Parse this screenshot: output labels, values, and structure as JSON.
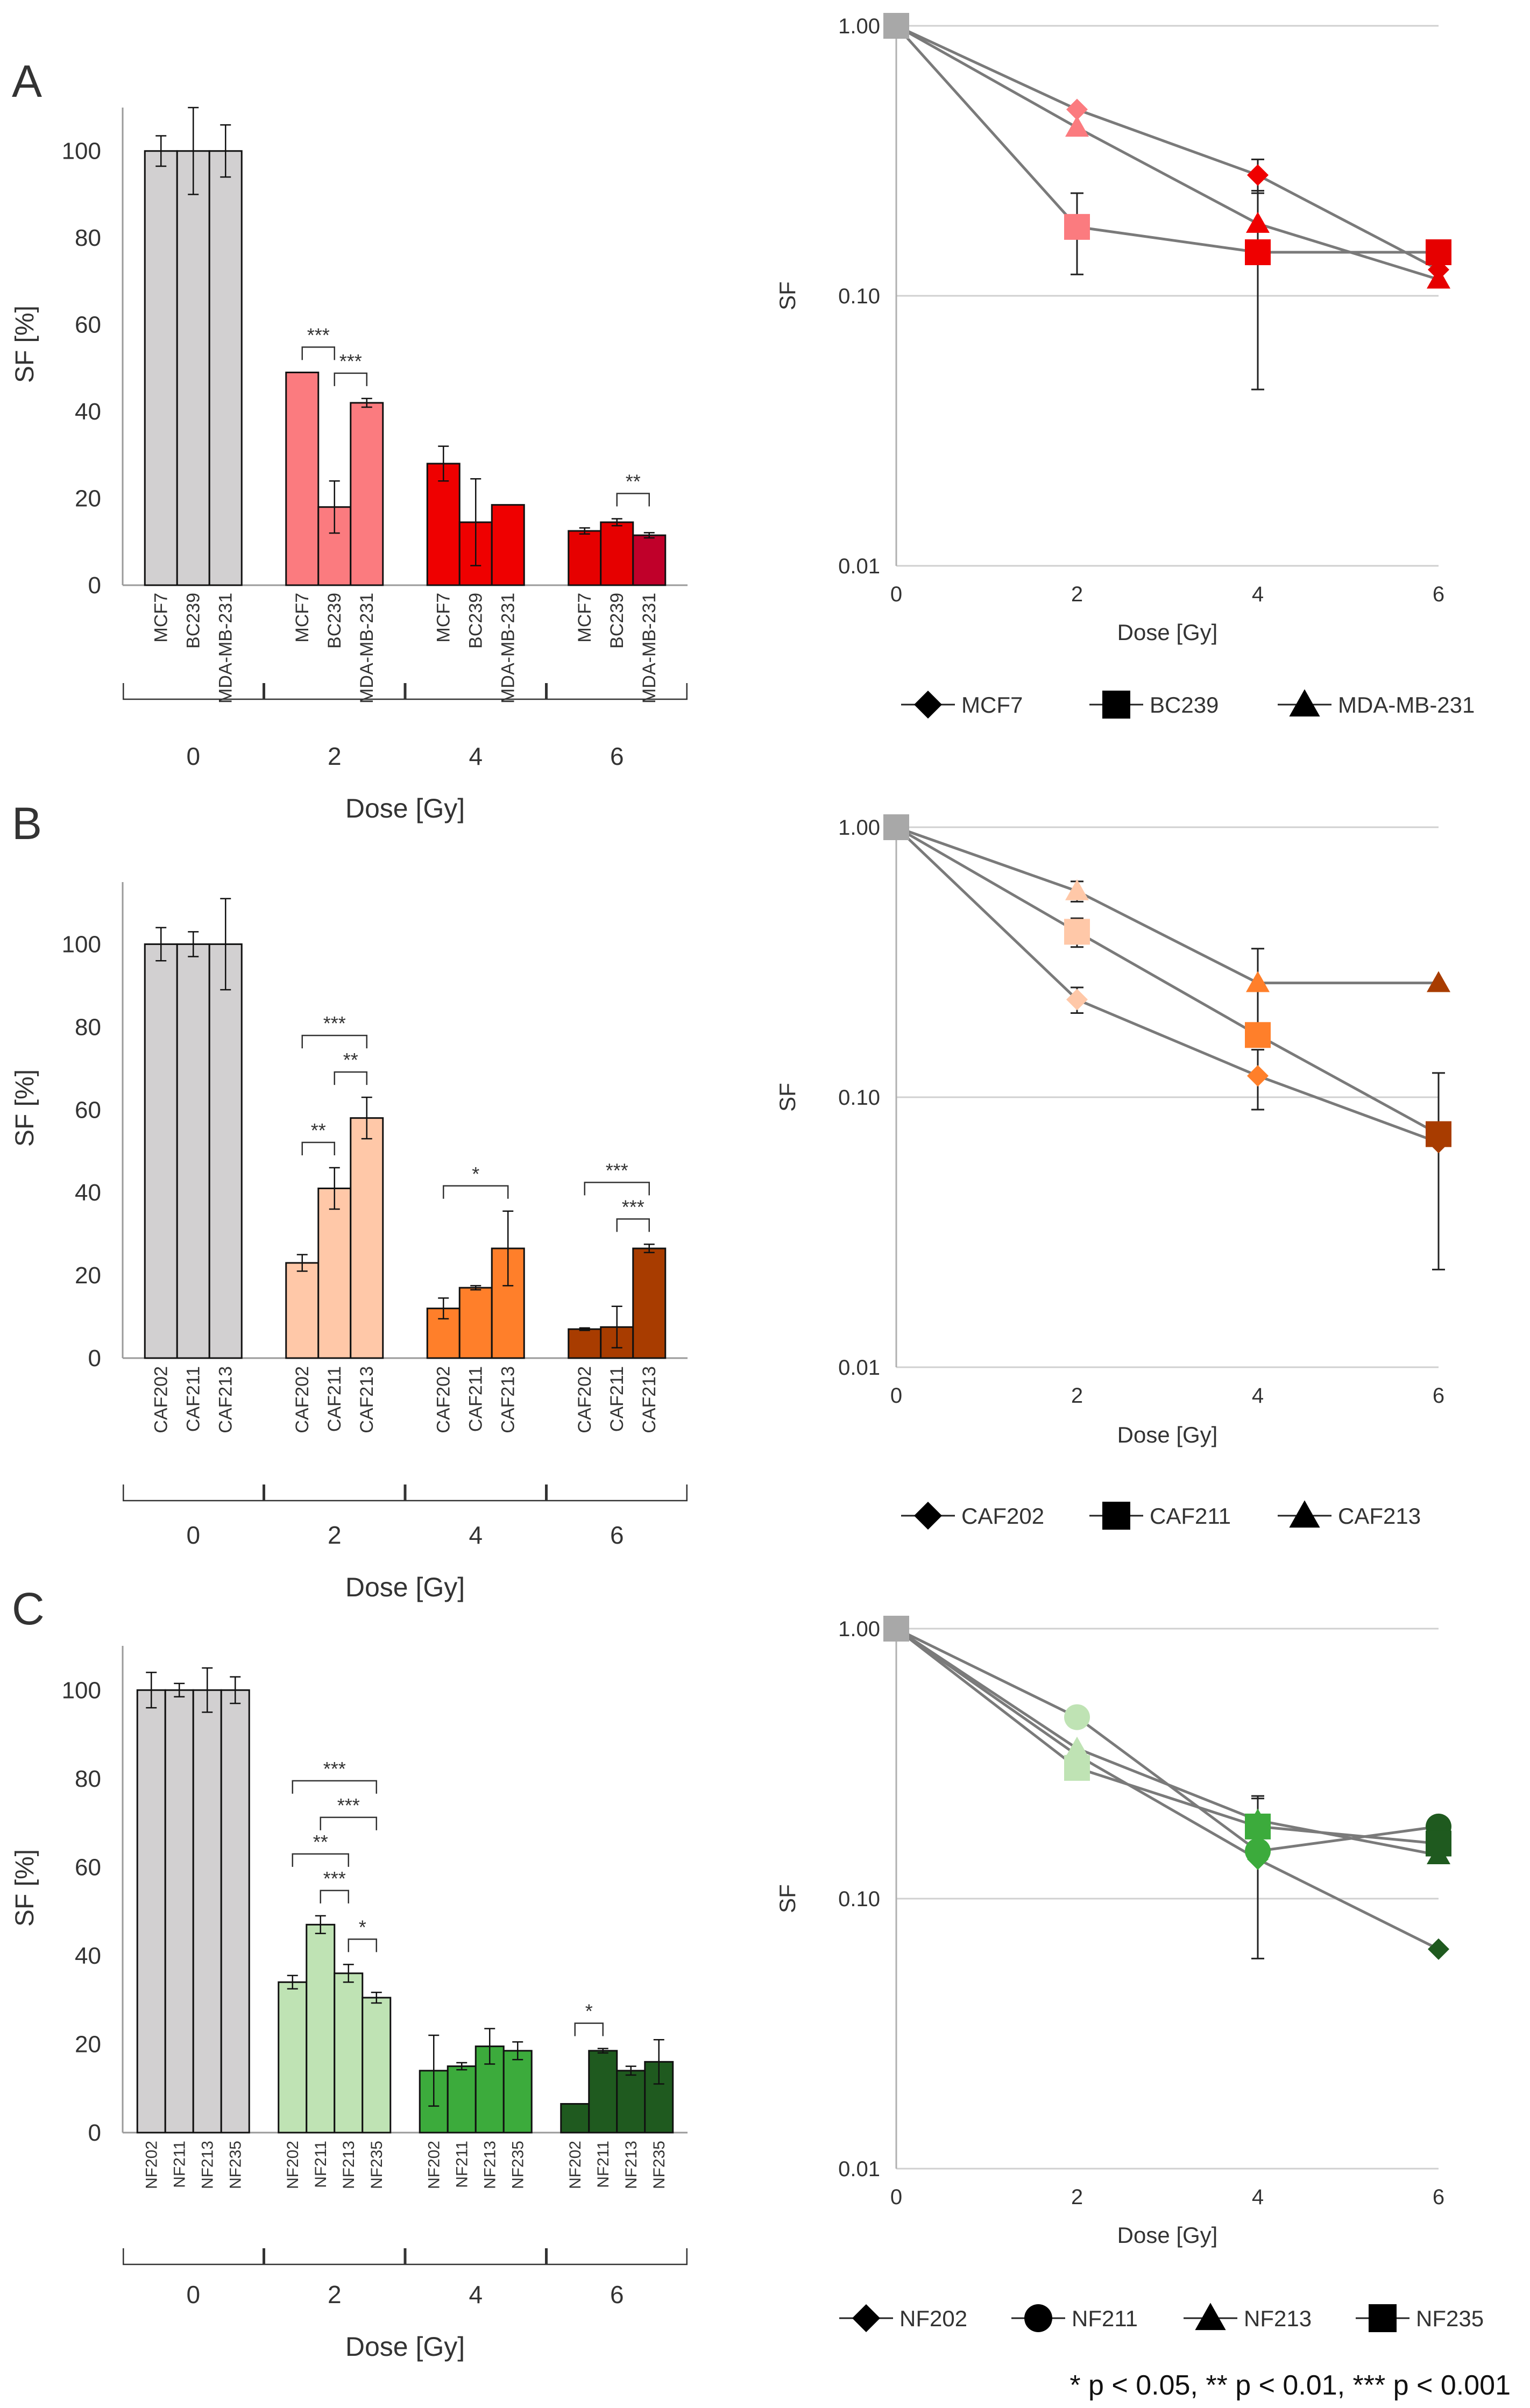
{
  "footnote": "* p < 0.05, ** p < 0.01, *** p < 0.001",
  "chart_data": [
    {
      "type": "bar",
      "panel": "A",
      "xlabel": "Dose [Gy]",
      "ylabel": "SF [%]",
      "ylim": [
        0,
        110
      ],
      "yticks": [
        0,
        20,
        40,
        60,
        80,
        100
      ],
      "doses": [
        "0",
        "2",
        "4",
        "6"
      ],
      "series_names": [
        "MCF7",
        "BC239",
        "MDA-MB-231"
      ],
      "groups": [
        {
          "dose": "0",
          "bars": [
            {
              "label": "MCF7",
              "value": 100,
              "err": 3.5,
              "color": "#d2d0d1"
            },
            {
              "label": "BC239",
              "value": 100,
              "err": 10,
              "color": "#d2d0d1"
            },
            {
              "label": "MDA-MB-231",
              "value": 100,
              "err": 6,
              "color": "#d2d0d1"
            }
          ]
        },
        {
          "dose": "2",
          "bars": [
            {
              "label": "MCF7",
              "value": 49,
              "err": 0,
              "color": "#fb7b7f"
            },
            {
              "label": "BC239",
              "value": 18,
              "err": 6,
              "color": "#fb7b7f"
            },
            {
              "label": "MDA-MB-231",
              "value": 42,
              "err": 1,
              "color": "#fb7b7f"
            }
          ]
        },
        {
          "dose": "4",
          "bars": [
            {
              "label": "MCF7",
              "value": 28,
              "err": 4,
              "color": "#ef0000"
            },
            {
              "label": "BC239",
              "value": 14.5,
              "err": 10,
              "color": "#ef0000"
            },
            {
              "label": "MDA-MB-231",
              "value": 18.5,
              "err": 0,
              "color": "#ef0000"
            }
          ]
        },
        {
          "dose": "6",
          "bars": [
            {
              "label": "MCF7",
              "value": 12.5,
              "err": 0.7,
              "color": "#e60000"
            },
            {
              "label": "BC239",
              "value": 14.5,
              "err": 0.8,
              "color": "#e60000"
            },
            {
              "label": "MDA-MB-231",
              "value": 11.5,
              "err": 0.6,
              "color": "#c0002a"
            }
          ]
        }
      ],
      "significance": [
        {
          "group": 1,
          "from": 0,
          "to": 1,
          "level": 1,
          "label": "***"
        },
        {
          "group": 1,
          "from": 1,
          "to": 2,
          "level": 1,
          "label": "***"
        },
        {
          "group": 3,
          "from": 1,
          "to": 2,
          "level": 1,
          "label": "**"
        }
      ]
    },
    {
      "type": "line",
      "panel": "A",
      "yscale": "log",
      "xlabel": "Dose [Gy]",
      "ylabel": "SF",
      "xlim": [
        0,
        6
      ],
      "xticks": [
        0,
        2,
        4,
        6
      ],
      "ylim": [
        0.01,
        1
      ],
      "ytick_labels": [
        "1.00",
        "0.10",
        "0.01"
      ],
      "legend": [
        {
          "name": "MCF7",
          "marker": "diamond"
        },
        {
          "name": "BC239",
          "marker": "square"
        },
        {
          "name": "MDA-MB-231",
          "marker": "triangle"
        }
      ],
      "series": [
        {
          "name": "MCF7",
          "marker": "diamond",
          "x": [
            0,
            2,
            4,
            6
          ],
          "y": [
            1.0,
            0.49,
            0.28,
            0.125
          ],
          "err": [
            null,
            null,
            0.04,
            null
          ],
          "colors": [
            "#a8a8a8",
            "#fb7b7f",
            "#ef0000",
            "#e60000"
          ]
        },
        {
          "name": "BC239",
          "marker": "square",
          "x": [
            0,
            2,
            4,
            6
          ],
          "y": [
            1.0,
            0.18,
            0.145,
            0.145
          ],
          "err": [
            null,
            0.06,
            0.1,
            null
          ],
          "colors": [
            "#a8a8a8",
            "#fb7b7f",
            "#ef0000",
            "#e60000"
          ]
        },
        {
          "name": "MDA-MB-231",
          "marker": "triangle",
          "x": [
            0,
            2,
            4,
            6
          ],
          "y": [
            1.0,
            0.42,
            0.185,
            0.115
          ],
          "err": [
            null,
            null,
            null,
            null
          ],
          "colors": [
            "#a8a8a8",
            "#fb7b7f",
            "#ef0000",
            "#e60000"
          ]
        }
      ]
    },
    {
      "type": "bar",
      "panel": "B",
      "xlabel": "Dose [Gy]",
      "ylabel": "SF [%]",
      "ylim": [
        0,
        115
      ],
      "yticks": [
        0,
        20,
        40,
        60,
        80,
        100
      ],
      "doses": [
        "0",
        "2",
        "4",
        "6"
      ],
      "series_names": [
        "CAF202",
        "CAF211",
        "CAF213"
      ],
      "groups": [
        {
          "dose": "0",
          "bars": [
            {
              "label": "CAF202",
              "value": 100,
              "err": 4,
              "color": "#d2d0d1"
            },
            {
              "label": "CAF211",
              "value": 100,
              "err": 3,
              "color": "#d2d0d1"
            },
            {
              "label": "CAF213",
              "value": 100,
              "err": 11,
              "color": "#d2d0d1"
            }
          ]
        },
        {
          "dose": "2",
          "bars": [
            {
              "label": "CAF202",
              "value": 23,
              "err": 2,
              "color": "#ffc8a8"
            },
            {
              "label": "CAF211",
              "value": 41,
              "err": 5,
              "color": "#ffc8a8"
            },
            {
              "label": "CAF213",
              "value": 58,
              "err": 5,
              "color": "#ffc8a8"
            }
          ]
        },
        {
          "dose": "4",
          "bars": [
            {
              "label": "CAF202",
              "value": 12,
              "err": 2.5,
              "color": "#ff7f2a"
            },
            {
              "label": "CAF211",
              "value": 17,
              "err": 0.5,
              "color": "#ff7f2a"
            },
            {
              "label": "CAF213",
              "value": 26.5,
              "err": 9,
              "color": "#ff7f2a"
            }
          ]
        },
        {
          "dose": "6",
          "bars": [
            {
              "label": "CAF202",
              "value": 7,
              "err": 0.3,
              "color": "#a83c00"
            },
            {
              "label": "CAF211",
              "value": 7.5,
              "err": 5,
              "color": "#a83c00"
            },
            {
              "label": "CAF213",
              "value": 26.5,
              "err": 1,
              "color": "#a83c00"
            }
          ]
        }
      ],
      "significance": [
        {
          "group": 1,
          "from": 0,
          "to": 2,
          "level": 2,
          "label": "***"
        },
        {
          "group": 1,
          "from": 0,
          "to": 1,
          "level": 1,
          "label": "**"
        },
        {
          "group": 1,
          "from": 1,
          "to": 2,
          "level": 1,
          "label": "**"
        },
        {
          "group": 2,
          "from": 0,
          "to": 2,
          "level": 1,
          "label": "*"
        },
        {
          "group": 3,
          "from": 0,
          "to": 2,
          "level": 2,
          "label": "***"
        },
        {
          "group": 3,
          "from": 1,
          "to": 2,
          "level": 1,
          "label": "***"
        }
      ]
    },
    {
      "type": "line",
      "panel": "B",
      "yscale": "log",
      "xlabel": "Dose [Gy]",
      "ylabel": "SF",
      "xlim": [
        0,
        6
      ],
      "xticks": [
        0,
        2,
        4,
        6
      ],
      "ylim": [
        0.01,
        1
      ],
      "ytick_labels": [
        "1.00",
        "0.10",
        "0.01"
      ],
      "legend": [
        {
          "name": "CAF202",
          "marker": "diamond"
        },
        {
          "name": "CAF211",
          "marker": "square"
        },
        {
          "name": "CAF213",
          "marker": "triangle"
        }
      ],
      "series": [
        {
          "name": "CAF202",
          "marker": "diamond",
          "x": [
            0,
            2,
            4,
            6
          ],
          "y": [
            1.0,
            0.23,
            0.12,
            0.068
          ],
          "err": [
            null,
            0.025,
            0.03,
            null
          ],
          "colors": [
            "#a8a8a8",
            "#ffc8a8",
            "#ff7f2a",
            "#a83c00"
          ]
        },
        {
          "name": "CAF211",
          "marker": "square",
          "x": [
            0,
            2,
            4,
            6
          ],
          "y": [
            1.0,
            0.41,
            0.17,
            0.073
          ],
          "err": [
            null,
            0.05,
            null,
            0.05
          ],
          "colors": [
            "#a8a8a8",
            "#ffc8a8",
            "#ff7f2a",
            "#a83c00"
          ]
        },
        {
          "name": "CAF213",
          "marker": "triangle",
          "x": [
            0,
            2,
            4,
            6
          ],
          "y": [
            1.0,
            0.58,
            0.265,
            0.265
          ],
          "err": [
            null,
            0.05,
            0.09,
            null
          ],
          "colors": [
            "#a8a8a8",
            "#ffc8a8",
            "#ff7f2a",
            "#a83c00"
          ]
        }
      ]
    },
    {
      "type": "bar",
      "panel": "C",
      "xlabel": "Dose [Gy]",
      "ylabel": "SF [%]",
      "ylim": [
        0,
        110
      ],
      "yticks": [
        0,
        20,
        40,
        60,
        80,
        100
      ],
      "doses": [
        "0",
        "2",
        "4",
        "6"
      ],
      "series_names": [
        "NF202",
        "NF211",
        "NF213",
        "NF235"
      ],
      "groups": [
        {
          "dose": "0",
          "bars": [
            {
              "label": "NF202",
              "value": 100,
              "err": 4,
              "color": "#d2d0d1"
            },
            {
              "label": "NF211",
              "value": 100,
              "err": 1.5,
              "color": "#d2d0d1"
            },
            {
              "label": "NF213",
              "value": 100,
              "err": 5,
              "color": "#d2d0d1"
            },
            {
              "label": "NF235",
              "value": 100,
              "err": 3,
              "color": "#d2d0d1"
            }
          ]
        },
        {
          "dose": "2",
          "bars": [
            {
              "label": "NF202",
              "value": 34,
              "err": 1.5,
              "color": "#bfe3b4"
            },
            {
              "label": "NF211",
              "value": 47,
              "err": 2,
              "color": "#bfe3b4"
            },
            {
              "label": "NF213",
              "value": 36,
              "err": 2,
              "color": "#bfe3b4"
            },
            {
              "label": "NF235",
              "value": 30.5,
              "err": 1.2,
              "color": "#bfe3b4"
            }
          ]
        },
        {
          "dose": "4",
          "bars": [
            {
              "label": "NF202",
              "value": 14,
              "err": 8,
              "color": "#3cab3c"
            },
            {
              "label": "NF211",
              "value": 15,
              "err": 0.8,
              "color": "#3cab3c"
            },
            {
              "label": "NF213",
              "value": 19.5,
              "err": 4,
              "color": "#3cab3c"
            },
            {
              "label": "NF235",
              "value": 18.5,
              "err": 2,
              "color": "#3cab3c"
            }
          ]
        },
        {
          "dose": "6",
          "bars": [
            {
              "label": "NF202",
              "value": 6.5,
              "err": 0,
              "color": "#1f5a1f"
            },
            {
              "label": "NF211",
              "value": 18.5,
              "err": 0.5,
              "color": "#1f5a1f"
            },
            {
              "label": "NF213",
              "value": 14,
              "err": 1,
              "color": "#1f5a1f"
            },
            {
              "label": "NF235",
              "value": 16,
              "err": 5,
              "color": "#1f5a1f"
            }
          ]
        }
      ],
      "significance": [
        {
          "group": 1,
          "from": 0,
          "to": 3,
          "level": 4,
          "label": "***"
        },
        {
          "group": 1,
          "from": 1,
          "to": 3,
          "level": 3,
          "label": "***"
        },
        {
          "group": 1,
          "from": 0,
          "to": 2,
          "level": 2,
          "label": "**"
        },
        {
          "group": 1,
          "from": 1,
          "to": 2,
          "level": 1,
          "label": "***"
        },
        {
          "group": 1,
          "from": 2,
          "to": 3,
          "level": 1,
          "label": "*"
        },
        {
          "group": 3,
          "from": 0,
          "to": 1,
          "level": 1,
          "label": "*"
        }
      ]
    },
    {
      "type": "line",
      "panel": "C",
      "yscale": "log",
      "xlabel": "Dose [Gy]",
      "ylabel": "SF",
      "xlim": [
        0,
        6
      ],
      "xticks": [
        0,
        2,
        4,
        6
      ],
      "ylim": [
        0.01,
        1
      ],
      "ytick_labels": [
        "1.00",
        "0.10",
        "0.01"
      ],
      "legend": [
        {
          "name": "NF202",
          "marker": "diamond"
        },
        {
          "name": "NF211",
          "marker": "circle"
        },
        {
          "name": "NF213",
          "marker": "triangle"
        },
        {
          "name": "NF235",
          "marker": "square"
        }
      ],
      "series": [
        {
          "name": "NF202",
          "marker": "diamond",
          "x": [
            0,
            2,
            4,
            6
          ],
          "y": [
            1.0,
            0.34,
            0.14,
            0.065
          ],
          "err": [
            null,
            null,
            null,
            null
          ],
          "colors": [
            "#a8a8a8",
            "#bfe3b4",
            "#3cab3c",
            "#1f5a1f"
          ]
        },
        {
          "name": "NF211",
          "marker": "circle",
          "x": [
            0,
            2,
            4,
            6
          ],
          "y": [
            1.0,
            0.47,
            0.15,
            0.185
          ],
          "err": [
            null,
            null,
            0.09,
            null
          ],
          "colors": [
            "#a8a8a8",
            "#bfe3b4",
            "#3cab3c",
            "#1f5a1f"
          ]
        },
        {
          "name": "NF213",
          "marker": "triangle",
          "x": [
            0,
            2,
            4,
            6
          ],
          "y": [
            1.0,
            0.36,
            0.195,
            0.145
          ],
          "err": [
            null,
            null,
            0.04,
            null
          ],
          "colors": [
            "#a8a8a8",
            "#bfe3b4",
            "#3cab3c",
            "#1f5a1f"
          ]
        },
        {
          "name": "NF235",
          "marker": "square",
          "x": [
            0,
            2,
            4,
            6
          ],
          "y": [
            1.0,
            0.305,
            0.185,
            0.16
          ],
          "err": [
            null,
            null,
            null,
            null
          ],
          "colors": [
            "#a8a8a8",
            "#bfe3b4",
            "#3cab3c",
            "#1f5a1f"
          ]
        }
      ]
    }
  ]
}
